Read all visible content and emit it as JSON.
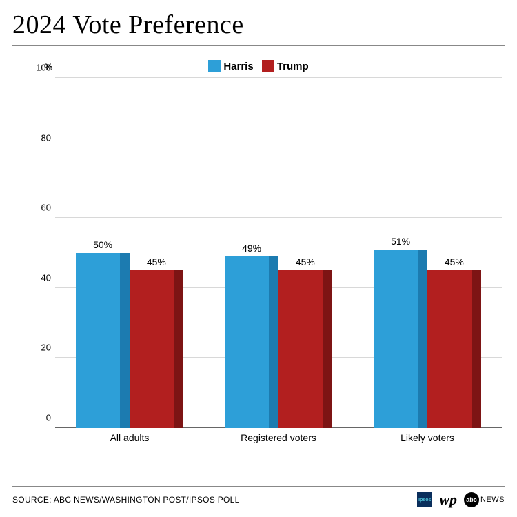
{
  "title": "2024 Vote Preference",
  "source_line": "SOURCE: ABC NEWS/WASHINGTON POST/IPSOS POLL",
  "chart": {
    "type": "bar",
    "y_unit_label": "%",
    "ylim": [
      0,
      100
    ],
    "ytick_step": 20,
    "yticks": [
      0,
      20,
      40,
      60,
      80,
      100
    ],
    "background_color": "#ffffff",
    "grid_color": "#d8d8d8",
    "axis_color": "#666666",
    "title_fontsize": 38,
    "label_fontsize": 14,
    "tick_fontsize": 13,
    "legend_fontsize": 15,
    "bar_group_gap_pct": 8,
    "bar_width_pct": 36,
    "series": [
      {
        "name": "Harris",
        "color": "#2d9fd8",
        "shade_color": "#1c7bb0"
      },
      {
        "name": "Trump",
        "color": "#b21f1f",
        "shade_color": "#7d1414"
      }
    ],
    "categories": [
      "All adults",
      "Registered voters",
      "Likely voters"
    ],
    "values": {
      "Harris": [
        50,
        49,
        51
      ],
      "Trump": [
        45,
        45,
        45
      ]
    },
    "value_labels": {
      "Harris": [
        "50%",
        "49%",
        "51%"
      ],
      "Trump": [
        "45%",
        "45%",
        "45%"
      ]
    }
  },
  "logos": {
    "ipsos_text": "Ipsos",
    "wp_text": "wp",
    "abc_circle": "abc",
    "abc_news": "NEWS"
  }
}
